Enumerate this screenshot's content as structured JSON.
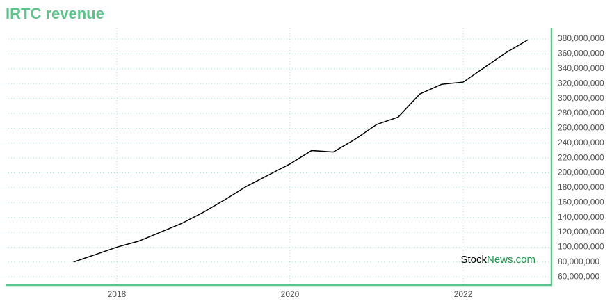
{
  "chart_data": {
    "type": "line",
    "title": "IRTC revenue",
    "x": [
      2017.5,
      2017.75,
      2018,
      2018.25,
      2018.5,
      2018.75,
      2019,
      2019.25,
      2019.5,
      2019.75,
      2020,
      2020.25,
      2020.5,
      2020.75,
      2021,
      2021.25,
      2021.5,
      2021.75,
      2022,
      2022.25,
      2022.5,
      2022.75
    ],
    "series": [
      {
        "name": "IRTC revenue",
        "color": "#000000",
        "values": [
          80000000,
          90000000,
          100000000,
          108000000,
          120000000,
          132000000,
          147000000,
          164000000,
          182000000,
          197000000,
          212000000,
          230000000,
          228000000,
          245000000,
          265000000,
          275000000,
          306000000,
          319000000,
          322000000,
          342000000,
          362000000,
          379000000
        ]
      }
    ],
    "xlim": [
      2016.715,
      2023.02
    ],
    "xticks": [
      2018,
      2020,
      2022
    ],
    "ylim": [
      49000000,
      395000000
    ],
    "yticks": [
      {
        "value": 60000000,
        "label": "60,000,000"
      },
      {
        "value": 80000000,
        "label": "80,000,000"
      },
      {
        "value": 100000000,
        "label": "100,000,000"
      },
      {
        "value": 120000000,
        "label": "120,000,000"
      },
      {
        "value": 140000000,
        "label": "140,000,000"
      },
      {
        "value": 160000000,
        "label": "160,000,000"
      },
      {
        "value": 180000000,
        "label": "180,000,000"
      },
      {
        "value": 200000000,
        "label": "200,000,000"
      },
      {
        "value": 220000000,
        "label": "220,000,000"
      },
      {
        "value": 240000000,
        "label": "240,000,000"
      },
      {
        "value": 260000000,
        "label": "260,000,000"
      },
      {
        "value": 280000000,
        "label": "280,000,000"
      },
      {
        "value": 300000000,
        "label": "300,000,000"
      },
      {
        "value": 320000000,
        "label": "320,000,000"
      },
      {
        "value": 340000000,
        "label": "340,000,000"
      },
      {
        "value": 360000000,
        "label": "360,000,000"
      },
      {
        "value": 380000000,
        "label": "380,000,000"
      }
    ],
    "grid": true,
    "watermark": {
      "prefix": "Stock",
      "suffix": "News.com"
    }
  }
}
